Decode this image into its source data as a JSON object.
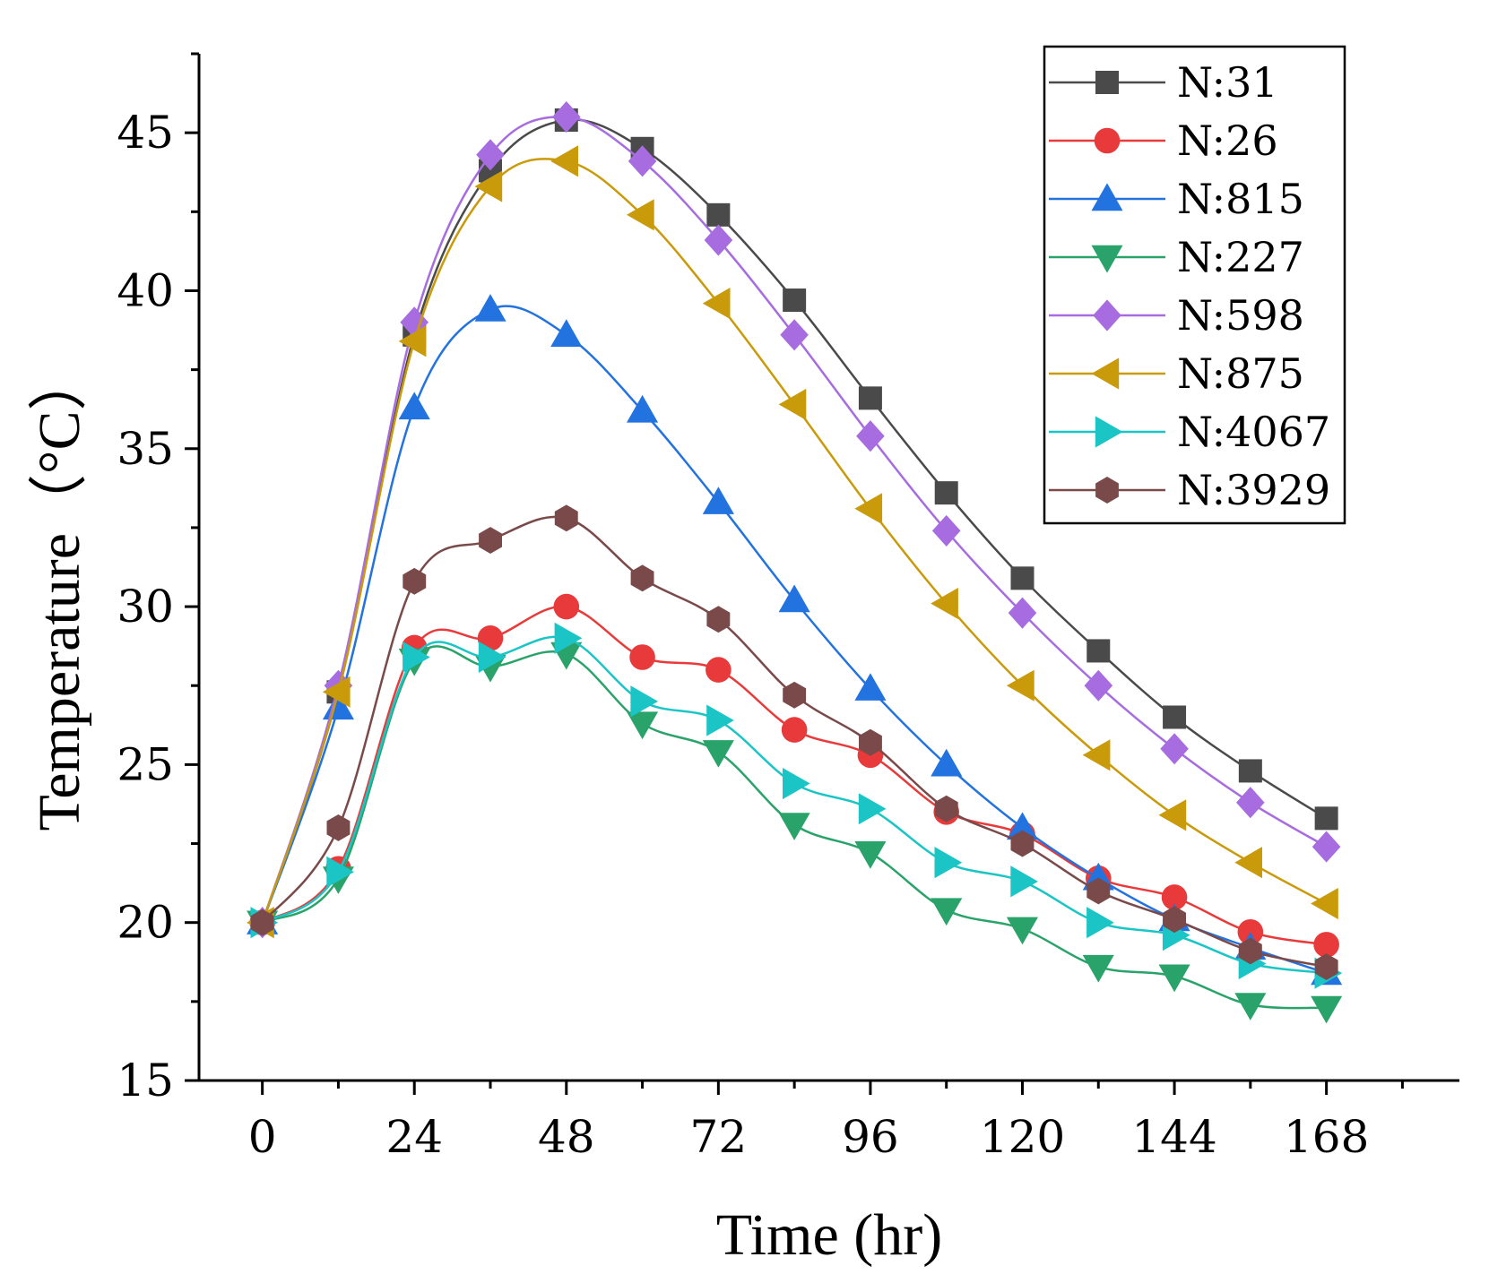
{
  "chart_data": {
    "type": "line",
    "title": "",
    "xlabel": "Time (hr)",
    "ylabel": "Temperature（°C）",
    "xlim": [
      -10,
      189
    ],
    "ylim": [
      15,
      47.5
    ],
    "xticks": [
      0,
      24,
      48,
      72,
      96,
      120,
      144,
      168
    ],
    "xtick_labels": [
      "0",
      "24",
      "48",
      "72",
      "96",
      "120",
      "144",
      "168"
    ],
    "yticks": [
      15,
      20,
      25,
      30,
      35,
      40,
      45
    ],
    "ytick_labels": [
      "15",
      "20",
      "25",
      "30",
      "35",
      "40",
      "45"
    ],
    "grid": false,
    "legend_position": "top-right",
    "x": [
      0,
      12,
      24,
      36,
      48,
      60,
      72,
      84,
      96,
      108,
      120,
      132,
      144,
      156,
      168
    ],
    "series": [
      {
        "name": "N:31",
        "color": "#4a4a4a",
        "marker": "square",
        "values": [
          20.0,
          27.3,
          38.6,
          43.8,
          45.4,
          44.5,
          42.4,
          39.7,
          36.6,
          33.6,
          30.9,
          28.6,
          26.5,
          24.8,
          23.3
        ]
      },
      {
        "name": "N:26",
        "color": "#e83a3a",
        "marker": "circle",
        "values": [
          20.0,
          21.7,
          28.7,
          29.0,
          30.0,
          28.4,
          28.0,
          26.1,
          25.3,
          23.5,
          22.8,
          21.4,
          20.8,
          19.7,
          19.3
        ]
      },
      {
        "name": "N:815",
        "color": "#2272e0",
        "marker": "triangle-up",
        "values": [
          20.0,
          26.8,
          36.3,
          39.4,
          38.6,
          36.2,
          33.3,
          30.2,
          27.4,
          25.0,
          23.0,
          21.4,
          20.1,
          19.2,
          18.4
        ]
      },
      {
        "name": "N:227",
        "color": "#2aa36a",
        "marker": "triangle-down",
        "values": [
          20.0,
          21.4,
          28.3,
          28.1,
          28.5,
          26.3,
          25.4,
          23.1,
          22.2,
          20.4,
          19.8,
          18.6,
          18.3,
          17.4,
          17.3
        ]
      },
      {
        "name": "N:598",
        "color": "#a76de0",
        "marker": "diamond",
        "values": [
          20.0,
          27.5,
          39.0,
          44.3,
          45.5,
          44.1,
          41.6,
          38.6,
          35.4,
          32.4,
          29.8,
          27.5,
          25.5,
          23.8,
          22.4
        ]
      },
      {
        "name": "N:875",
        "color": "#c99a0a",
        "marker": "triangle-left",
        "values": [
          20.0,
          27.3,
          38.4,
          43.3,
          44.1,
          42.4,
          39.6,
          36.4,
          33.1,
          30.1,
          27.5,
          25.3,
          23.4,
          21.9,
          20.6
        ]
      },
      {
        "name": "N:4067",
        "color": "#1cc5c5",
        "marker": "triangle-right",
        "values": [
          20.0,
          21.6,
          28.4,
          28.4,
          29.0,
          27.0,
          26.4,
          24.4,
          23.6,
          21.9,
          21.3,
          20.0,
          19.6,
          18.7,
          18.4
        ]
      },
      {
        "name": "N:3929",
        "color": "#7a4a4a",
        "marker": "hexagon",
        "values": [
          20.0,
          23.0,
          30.8,
          32.1,
          32.8,
          30.9,
          29.6,
          27.2,
          25.7,
          23.6,
          22.5,
          21.0,
          20.1,
          19.1,
          18.6
        ]
      }
    ]
  }
}
